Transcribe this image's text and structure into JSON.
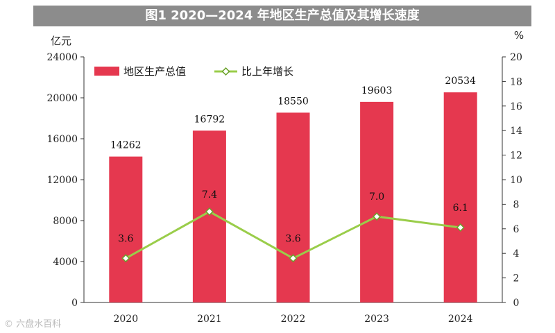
{
  "title": "图1 2020—2024 年地区生产总值及其增长速度",
  "watermark": "© 六盘水百科",
  "chart_data": {
    "type": "bar",
    "categories": [
      "2020",
      "2021",
      "2022",
      "2023",
      "2024"
    ],
    "series": [
      {
        "name": "地区生产总值",
        "type": "bar",
        "axis": "left",
        "color": "#e5384f",
        "values": [
          14262,
          16792,
          18550,
          19603,
          20534
        ]
      },
      {
        "name": "比上年增长",
        "type": "line",
        "axis": "right",
        "color": "#9acd4a",
        "values": [
          3.6,
          7.4,
          3.6,
          7.0,
          6.1
        ]
      }
    ],
    "y_left": {
      "unit": "亿元",
      "ylim": [
        0,
        24000
      ],
      "ticks": [
        "0",
        "4000",
        "8000",
        "12000",
        "16000",
        "20000",
        "24000"
      ]
    },
    "y_right": {
      "unit": "%",
      "ylim": [
        0,
        20
      ],
      "ticks": [
        "0",
        "2",
        "4",
        "6",
        "8",
        "10",
        "12",
        "14",
        "16",
        "18",
        "20"
      ]
    },
    "legend": "top-left",
    "grid": false
  }
}
